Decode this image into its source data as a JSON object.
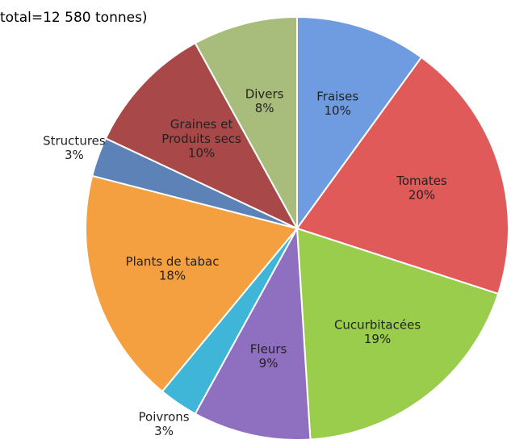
{
  "chart_data": {
    "type": "pie",
    "title": "total=12 580 tonnes)",
    "categories": [
      "Fraises",
      "Tomates",
      "Cucurbitacées",
      "Fleurs",
      "Poivrons",
      "Plants de tabac",
      "Structures",
      "Graines et Produits secs",
      "Divers"
    ],
    "values": [
      10,
      20,
      19,
      9,
      3,
      18,
      3,
      10,
      8
    ],
    "value_labels": [
      "10%",
      "20%",
      "19%",
      "9%",
      "3%",
      "18%",
      "3%",
      "10%",
      "8%"
    ],
    "colors": [
      "#6f9be0",
      "#e05a5a",
      "#9acd4c",
      "#8e6fc0",
      "#3fb5d8",
      "#f5a040",
      "#5c82b8",
      "#a84848",
      "#a8bc7c"
    ]
  }
}
